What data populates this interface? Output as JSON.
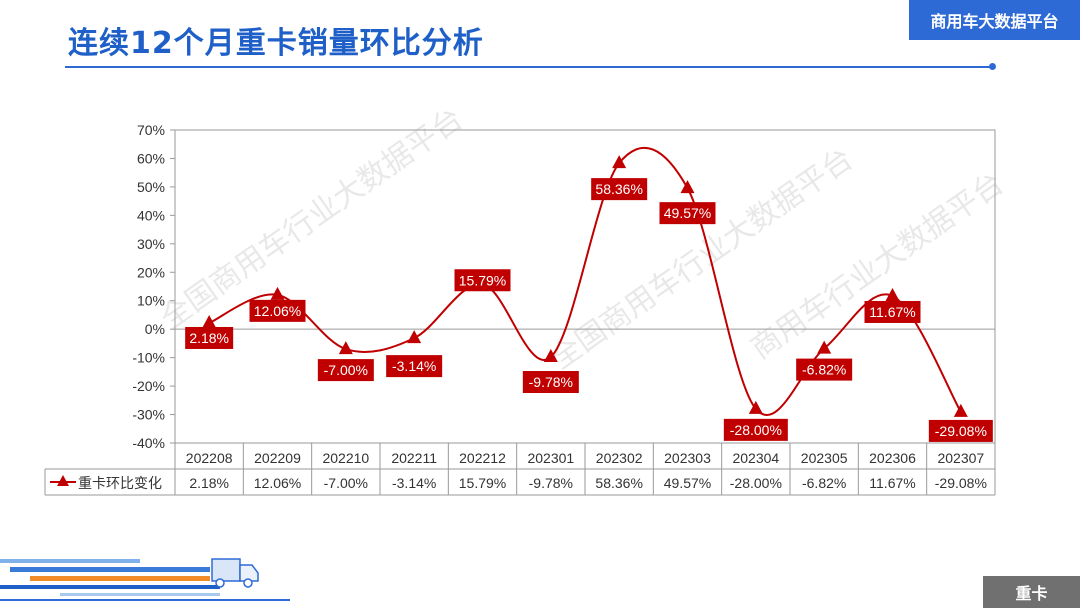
{
  "header": {
    "title": "连续12个月重卡销量环比分析",
    "brand": "商用车大数据平台"
  },
  "footer": {
    "category": "重卡"
  },
  "watermark": "全国商用车行业大数据平台",
  "chart_data": {
    "type": "line",
    "categories": [
      "202208",
      "202209",
      "202210",
      "202211",
      "202212",
      "202301",
      "202302",
      "202303",
      "202304",
      "202305",
      "202306",
      "202307"
    ],
    "series": [
      {
        "name": "重卡环比变化",
        "values": [
          2.18,
          12.06,
          -7.0,
          -3.14,
          15.79,
          -9.78,
          58.36,
          49.57,
          -28.0,
          -6.82,
          11.67,
          -29.08
        ],
        "labels": [
          "2.18%",
          "12.06%",
          "-7.00%",
          "-3.14%",
          "15.79%",
          "-9.78%",
          "58.36%",
          "49.57%",
          "-28.00%",
          "-6.82%",
          "11.67%",
          "-29.08%"
        ]
      }
    ],
    "ylim": [
      -40,
      70
    ],
    "yticks": [
      70,
      60,
      50,
      40,
      30,
      20,
      10,
      0,
      -10,
      -20,
      -30,
      -40
    ],
    "ytick_labels": [
      "70%",
      "60%",
      "50%",
      "40%",
      "30%",
      "20%",
      "10%",
      "0%",
      "-10%",
      "-20%",
      "-30%",
      "-40%"
    ],
    "title": "",
    "xlabel": "",
    "ylabel": "",
    "grid": false,
    "data_table": true,
    "line_color": "#c00000",
    "label_bg": "#c00000"
  }
}
